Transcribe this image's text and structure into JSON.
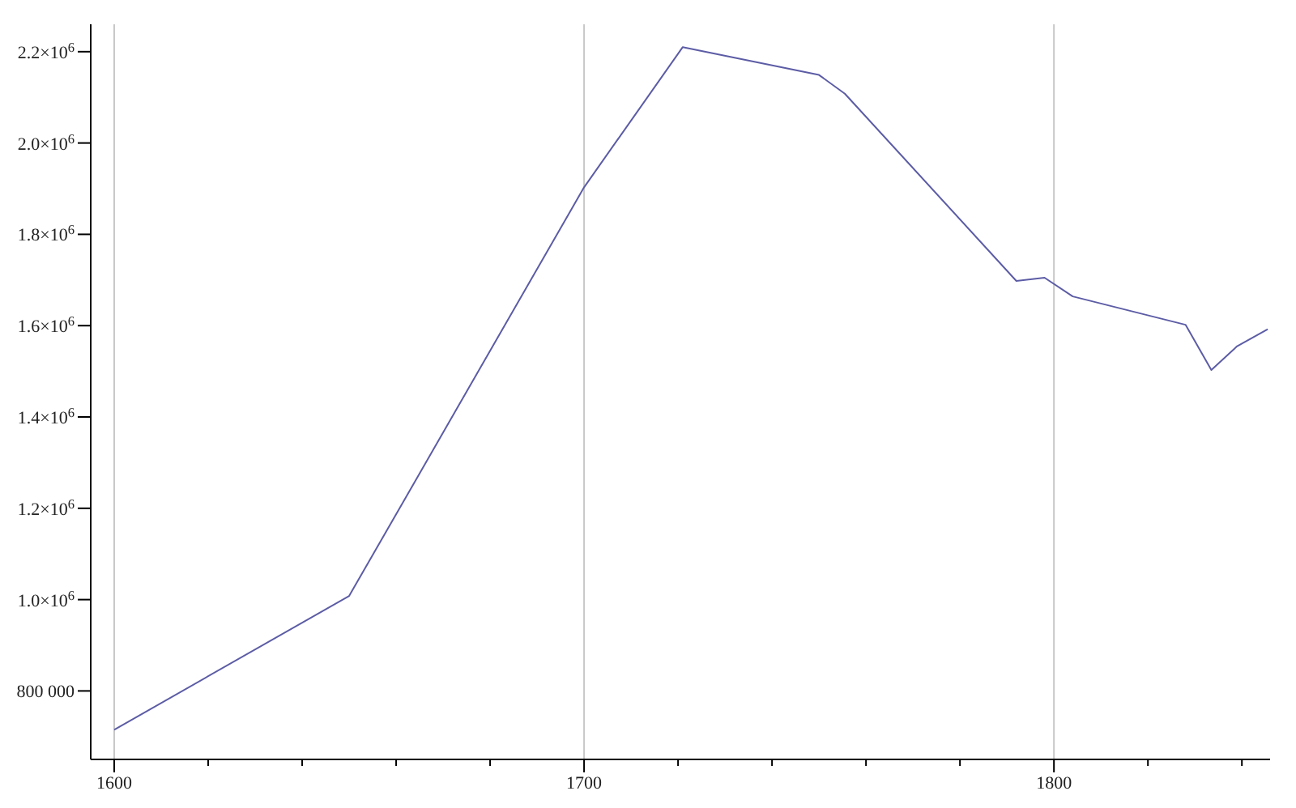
{
  "chart_data": {
    "type": "line",
    "x": [
      1600,
      1650,
      1700,
      1721,
      1750,
      1755.5,
      1792,
      1798,
      1804,
      1828,
      1833.5,
      1839,
      1845.5
    ],
    "series": [
      {
        "color": "#5c5ca6",
        "values": [
          715000,
          1008000,
          1903000,
          2210000,
          2149000,
          2108000,
          1698000,
          1705000,
          1664000,
          1602000,
          1503000,
          1555000,
          1592000
        ]
      }
    ],
    "xlim": [
      1595,
      1846
    ],
    "xticks": [
      1600,
      {
        "value": 1620,
        "label": null
      },
      {
        "value": 1640,
        "label": null
      },
      {
        "value": 1660,
        "label": null
      },
      {
        "value": 1680,
        "label": null
      },
      1700,
      {
        "value": 1720,
        "label": null
      },
      {
        "value": 1740,
        "label": null
      },
      {
        "value": 1760,
        "label": null
      },
      {
        "value": 1780,
        "label": null
      },
      1800,
      {
        "value": 1820,
        "label": null
      },
      {
        "value": 1840,
        "label": null
      }
    ],
    "ylim": [
      650000,
      2260000
    ],
    "yticks": [
      {
        "value": 800000,
        "label": "800 000"
      },
      {
        "value": 1000000,
        "label": "1.0×10$^{6}$"
      },
      {
        "value": 1200000,
        "label": "1.2×10$^{6}$"
      },
      {
        "value": 1400000,
        "label": "1.4×10$^{6}$"
      },
      {
        "value": 1600000,
        "label": "1.6×10$^{6}$"
      },
      {
        "value": 1800000,
        "label": "1.8×10$^{6}$"
      },
      {
        "value": 2000000,
        "label": "2.0×10$^{6}$"
      },
      {
        "value": 2200000,
        "label": "2.2×10$^{6}$"
      }
    ],
    "grid": "x",
    "marker": "none",
    "line_style": "solid"
  }
}
